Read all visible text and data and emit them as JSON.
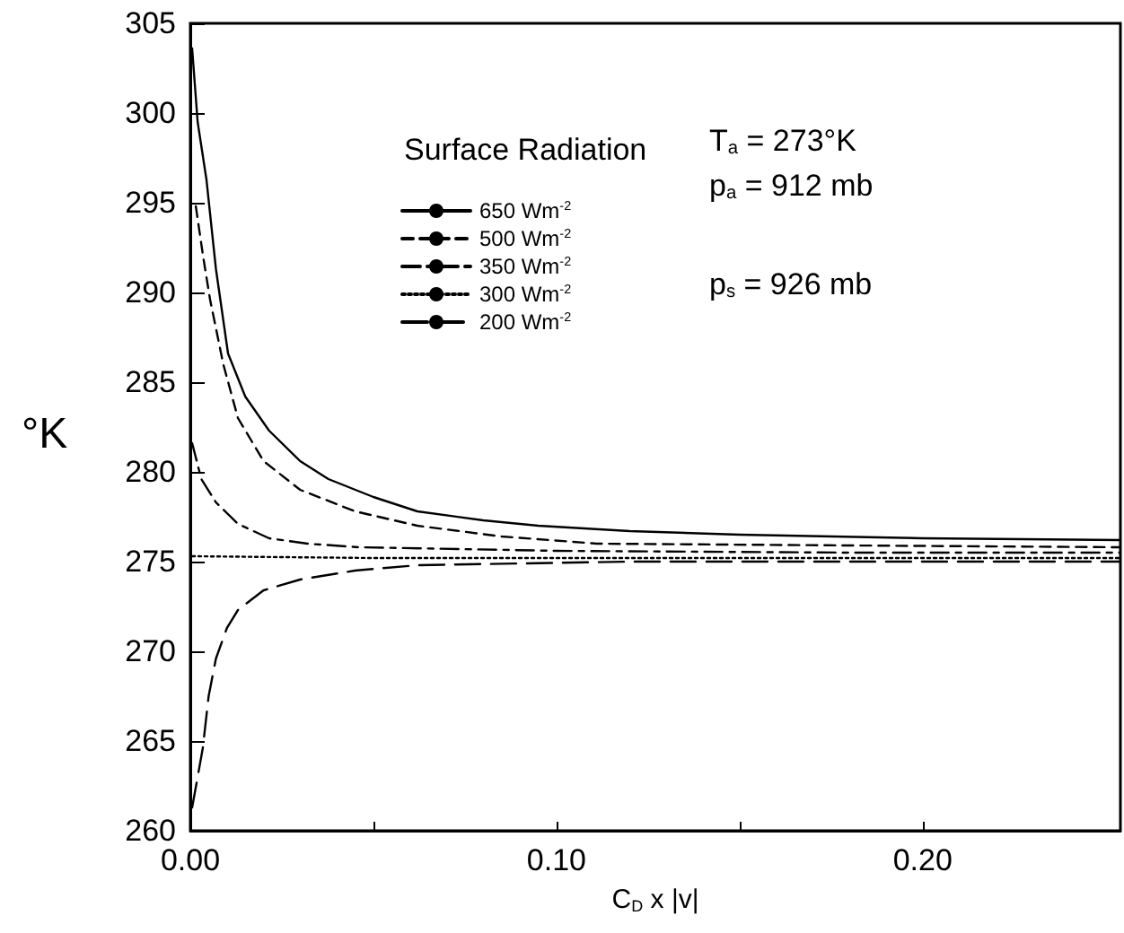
{
  "chart_data": {
    "type": "line",
    "xlabel": "C$_{D}$ x |v|",
    "ylabel": "°K",
    "legend_title": "Surface Radiation",
    "annotations": [
      "T$_{a}$ = 273°K",
      "p$_{a}$ = 912 mb",
      "p$_{s}$ = 926 mb"
    ],
    "xlim": [
      0,
      0.254
    ],
    "ylim": [
      260,
      305
    ],
    "xticks": [
      {
        "value": 0,
        "label": "0.00"
      },
      {
        "value": 0.05,
        "label": null
      },
      {
        "value": 0.1,
        "label": "0.10"
      },
      {
        "value": 0.15,
        "label": null
      },
      {
        "value": 0.2,
        "label": "0.20"
      }
    ],
    "yticks": [
      260,
      265,
      270,
      275,
      280,
      285,
      290,
      295,
      300,
      305
    ],
    "grid": false,
    "legend": "top",
    "marker": "none",
    "series": [
      {
        "name": "650 Wm$^{-2}$",
        "color": "#000000",
        "line_style": "solid",
        "x": [
          0.0005,
          0.002,
          0.0044,
          0.007,
          0.0103,
          0.015,
          0.0215,
          0.03,
          0.0377,
          0.05,
          0.062,
          0.08,
          0.095,
          0.12,
          0.15,
          0.2,
          0.254
        ],
        "values": [
          303.6,
          299.5,
          296.3,
          291.3,
          286.6,
          284.2,
          282.3,
          280.6,
          279.6,
          278.6,
          277.8,
          277.3,
          277,
          276.7,
          276.5,
          276.3,
          276.2
        ]
      },
      {
        "name": "500 Wm$^{-2}$",
        "color": "#000000",
        "line_style": "dashed",
        "x": [
          0.0015,
          0.0035,
          0.0054,
          0.009,
          0.013,
          0.02,
          0.03,
          0.045,
          0.062,
          0.085,
          0.111,
          0.18,
          0.254
        ],
        "values": [
          294.8,
          292,
          289.6,
          286,
          283,
          280.6,
          279,
          277.8,
          277,
          276.4,
          276,
          275.9,
          275.8
        ]
      },
      {
        "name": "350 Wm$^{-2}$",
        "color": "#000000",
        "line_style": "dashdot",
        "x": [
          0.0005,
          0.003,
          0.007,
          0.013,
          0.0215,
          0.032,
          0.046,
          0.1,
          0.18,
          0.254
        ],
        "values": [
          281.6,
          279.6,
          278.3,
          277.1,
          276.3,
          276,
          275.8,
          275.6,
          275.5,
          275.5
        ]
      },
      {
        "name": "300 Wm$^{-2}$",
        "color": "#000000",
        "line_style": "dotted",
        "x": [
          0.0005,
          0.05,
          0.254
        ],
        "values": [
          275.3,
          275.2,
          275.2
        ]
      },
      {
        "name": "200 Wm$^{-2}$",
        "color": "#000000",
        "line_style": "longdash",
        "x": [
          0.0005,
          0.002,
          0.0034,
          0.005,
          0.007,
          0.01,
          0.013,
          0.02,
          0.03,
          0.045,
          0.062,
          0.12,
          0.18,
          0.254
        ],
        "values": [
          261.3,
          263,
          264.6,
          267.5,
          269.6,
          271.3,
          272.3,
          273.4,
          274,
          274.5,
          274.8,
          275,
          275,
          275
        ]
      }
    ]
  }
}
